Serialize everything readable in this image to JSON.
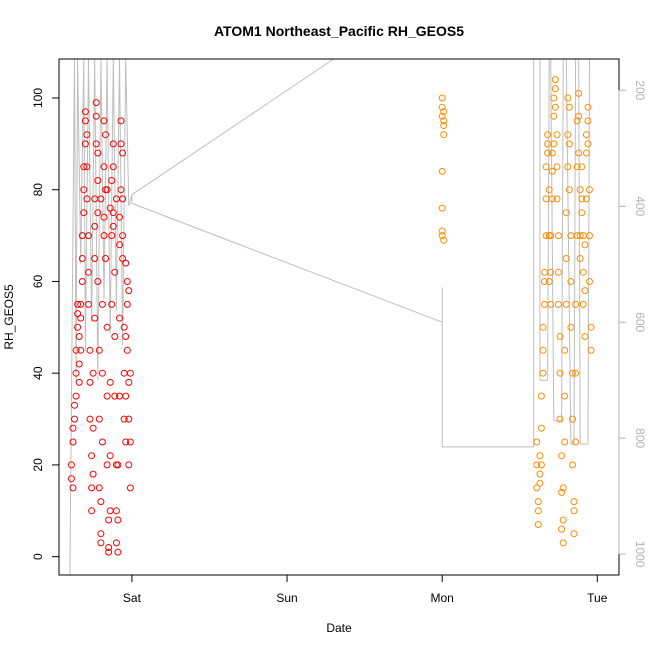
{
  "chart_data": {
    "type": "scatter",
    "title": "ATOM1 Northeast_Pacific RH_GEOS5",
    "xlabel": "Date",
    "ylabel": "RH_GEOS5",
    "xlim": [
      -0.47,
      3.14
    ],
    "ylim": [
      -4,
      108.5
    ],
    "x_ticks": [
      {
        "value": 0,
        "label": "Sat"
      },
      {
        "value": 1,
        "label": "Sun"
      },
      {
        "value": 2,
        "label": "Mon"
      },
      {
        "value": 3,
        "label": "Tue"
      }
    ],
    "y_ticks": [
      0,
      20,
      40,
      60,
      80,
      100
    ],
    "right_axis": {
      "label": "",
      "ticks": [
        200,
        400,
        600,
        800,
        1000
      ],
      "range": [
        1036,
        146
      ],
      "color": "#b3b3b3"
    },
    "series": [
      {
        "color": "#ff0000",
        "points": [
          [
            -0.39,
            17
          ],
          [
            -0.39,
            20
          ],
          [
            -0.38,
            15
          ],
          [
            -0.38,
            25
          ],
          [
            -0.38,
            28
          ],
          [
            -0.37,
            33
          ],
          [
            -0.37,
            30
          ],
          [
            -0.36,
            35
          ],
          [
            -0.36,
            40
          ],
          [
            -0.36,
            45
          ],
          [
            -0.35,
            50
          ],
          [
            -0.35,
            53
          ],
          [
            -0.35,
            55
          ],
          [
            -0.34,
            48
          ],
          [
            -0.34,
            42
          ],
          [
            -0.34,
            38
          ],
          [
            -0.33,
            45
          ],
          [
            -0.33,
            55
          ],
          [
            -0.33,
            52
          ],
          [
            -0.32,
            60
          ],
          [
            -0.32,
            65
          ],
          [
            -0.32,
            70
          ],
          [
            -0.31,
            75
          ],
          [
            -0.31,
            80
          ],
          [
            -0.31,
            85
          ],
          [
            -0.3,
            90
          ],
          [
            -0.3,
            95
          ],
          [
            -0.3,
            97
          ],
          [
            -0.29,
            92
          ],
          [
            -0.29,
            85
          ],
          [
            -0.29,
            78
          ],
          [
            -0.28,
            70
          ],
          [
            -0.28,
            62
          ],
          [
            -0.28,
            55
          ],
          [
            -0.27,
            45
          ],
          [
            -0.27,
            38
          ],
          [
            -0.27,
            30
          ],
          [
            -0.26,
            22
          ],
          [
            -0.26,
            15
          ],
          [
            -0.26,
            10
          ],
          [
            -0.25,
            18
          ],
          [
            -0.25,
            28
          ],
          [
            -0.25,
            40
          ],
          [
            -0.24,
            52
          ],
          [
            -0.24,
            65
          ],
          [
            -0.24,
            78
          ],
          [
            -0.23,
            90
          ],
          [
            -0.23,
            99
          ],
          [
            -0.23,
            96
          ],
          [
            -0.22,
            88
          ],
          [
            -0.22,
            75
          ],
          [
            -0.22,
            60
          ],
          [
            -0.21,
            45
          ],
          [
            -0.21,
            30
          ],
          [
            -0.21,
            15
          ],
          [
            -0.2,
            5
          ],
          [
            -0.2,
            3
          ],
          [
            -0.2,
            12
          ],
          [
            -0.19,
            25
          ],
          [
            -0.19,
            40
          ],
          [
            -0.19,
            55
          ],
          [
            -0.18,
            70
          ],
          [
            -0.18,
            85
          ],
          [
            -0.18,
            95
          ],
          [
            -0.17,
            92
          ],
          [
            -0.17,
            80
          ],
          [
            -0.17,
            65
          ],
          [
            -0.16,
            50
          ],
          [
            -0.16,
            35
          ],
          [
            -0.16,
            20
          ],
          [
            -0.15,
            8
          ],
          [
            -0.15,
            2
          ],
          [
            -0.15,
            1
          ],
          [
            -0.14,
            10
          ],
          [
            -0.14,
            22
          ],
          [
            -0.14,
            38
          ],
          [
            -0.13,
            55
          ],
          [
            -0.13,
            70
          ],
          [
            -0.13,
            82
          ],
          [
            -0.12,
            90
          ],
          [
            -0.12,
            85
          ],
          [
            -0.12,
            75
          ],
          [
            -0.11,
            62
          ],
          [
            -0.11,
            48
          ],
          [
            -0.11,
            35
          ],
          [
            -0.1,
            20
          ],
          [
            -0.1,
            10
          ],
          [
            -0.1,
            3
          ],
          [
            -0.09,
            1
          ],
          [
            -0.09,
            8
          ],
          [
            -0.09,
            20
          ],
          [
            -0.08,
            35
          ],
          [
            -0.08,
            52
          ],
          [
            -0.08,
            68
          ],
          [
            -0.07,
            80
          ],
          [
            -0.07,
            90
          ],
          [
            -0.07,
            95
          ],
          [
            -0.06,
            88
          ],
          [
            -0.06,
            78
          ],
          [
            -0.06,
            65
          ],
          [
            -0.05,
            50
          ],
          [
            -0.05,
            40
          ],
          [
            -0.05,
            30
          ],
          [
            -0.04,
            25
          ],
          [
            -0.04,
            35
          ],
          [
            -0.04,
            48
          ],
          [
            -0.03,
            60
          ],
          [
            -0.03,
            55
          ],
          [
            -0.03,
            45
          ],
          [
            -0.02,
            38
          ],
          [
            -0.02,
            30
          ],
          [
            -0.02,
            20
          ],
          [
            -0.01,
            15
          ],
          [
            -0.01,
            25
          ],
          [
            -0.01,
            40
          ],
          [
            -0.24,
            72
          ],
          [
            -0.22,
            82
          ],
          [
            -0.2,
            78
          ],
          [
            -0.18,
            74
          ],
          [
            -0.16,
            80
          ],
          [
            -0.14,
            76
          ],
          [
            -0.12,
            72
          ],
          [
            -0.1,
            78
          ],
          [
            -0.08,
            74
          ],
          [
            -0.06,
            70
          ],
          [
            -0.04,
            64
          ],
          [
            -0.02,
            58
          ]
        ]
      },
      {
        "color": "#ff8c00",
        "points": [
          [
            2.0,
            100
          ],
          [
            2.0,
            98
          ],
          [
            2.0,
            96
          ],
          [
            2.01,
            94
          ],
          [
            2.01,
            97
          ],
          [
            2.01,
            95
          ],
          [
            2.01,
            92
          ],
          [
            2.0,
            84
          ],
          [
            2.0,
            76
          ],
          [
            2.0,
            71
          ],
          [
            2.0,
            70
          ],
          [
            2.01,
            69
          ],
          [
            2.61,
            25
          ],
          [
            2.61,
            20
          ],
          [
            2.61,
            15
          ],
          [
            2.62,
            10
          ],
          [
            2.62,
            7
          ],
          [
            2.62,
            12
          ],
          [
            2.63,
            18
          ],
          [
            2.63,
            22
          ],
          [
            2.63,
            16
          ],
          [
            2.64,
            20
          ],
          [
            2.64,
            28
          ],
          [
            2.64,
            35
          ],
          [
            2.65,
            40
          ],
          [
            2.65,
            45
          ],
          [
            2.65,
            50
          ],
          [
            2.66,
            55
          ],
          [
            2.66,
            60
          ],
          [
            2.66,
            62
          ],
          [
            2.67,
            70
          ],
          [
            2.67,
            78
          ],
          [
            2.67,
            85
          ],
          [
            2.68,
            90
          ],
          [
            2.68,
            92
          ],
          [
            2.68,
            88
          ],
          [
            2.69,
            80
          ],
          [
            2.69,
            70
          ],
          [
            2.69,
            60
          ],
          [
            2.7,
            55
          ],
          [
            2.7,
            62
          ],
          [
            2.7,
            70
          ],
          [
            2.71,
            78
          ],
          [
            2.71,
            84
          ],
          [
            2.71,
            88
          ],
          [
            2.72,
            90
          ],
          [
            2.72,
            96
          ],
          [
            2.72,
            100
          ],
          [
            2.73,
            104
          ],
          [
            2.73,
            102
          ],
          [
            2.73,
            98
          ],
          [
            2.74,
            92
          ],
          [
            2.74,
            85
          ],
          [
            2.74,
            78
          ],
          [
            2.75,
            70
          ],
          [
            2.75,
            62
          ],
          [
            2.75,
            55
          ],
          [
            2.76,
            48
          ],
          [
            2.76,
            40
          ],
          [
            2.76,
            30
          ],
          [
            2.77,
            22
          ],
          [
            2.77,
            14
          ],
          [
            2.77,
            6
          ],
          [
            2.78,
            3
          ],
          [
            2.78,
            8
          ],
          [
            2.78,
            15
          ],
          [
            2.79,
            25
          ],
          [
            2.79,
            35
          ],
          [
            2.79,
            45
          ],
          [
            2.8,
            55
          ],
          [
            2.8,
            65
          ],
          [
            2.8,
            75
          ],
          [
            2.81,
            85
          ],
          [
            2.81,
            92
          ],
          [
            2.81,
            100
          ],
          [
            2.82,
            98
          ],
          [
            2.82,
            90
          ],
          [
            2.82,
            80
          ],
          [
            2.83,
            70
          ],
          [
            2.83,
            60
          ],
          [
            2.83,
            50
          ],
          [
            2.84,
            40
          ],
          [
            2.84,
            30
          ],
          [
            2.84,
            20
          ],
          [
            2.85,
            10
          ],
          [
            2.85,
            5
          ],
          [
            2.85,
            12
          ],
          [
            2.86,
            25
          ],
          [
            2.86,
            40
          ],
          [
            2.86,
            55
          ],
          [
            2.87,
            70
          ],
          [
            2.87,
            85
          ],
          [
            2.87,
            95
          ],
          [
            2.88,
            101
          ],
          [
            2.88,
            96
          ],
          [
            2.88,
            88
          ],
          [
            2.89,
            80
          ],
          [
            2.89,
            70
          ],
          [
            2.89,
            65
          ],
          [
            2.9,
            75
          ],
          [
            2.9,
            85
          ],
          [
            2.9,
            78
          ],
          [
            2.91,
            70
          ],
          [
            2.91,
            62
          ],
          [
            2.91,
            55
          ],
          [
            2.92,
            48
          ],
          [
            2.92,
            58
          ],
          [
            2.92,
            68
          ],
          [
            2.93,
            78
          ],
          [
            2.93,
            88
          ],
          [
            2.93,
            92
          ],
          [
            2.94,
            95
          ],
          [
            2.94,
            98
          ],
          [
            2.94,
            90
          ],
          [
            2.95,
            80
          ],
          [
            2.95,
            70
          ],
          [
            2.95,
            60
          ],
          [
            2.96,
            50
          ],
          [
            2.96,
            45
          ]
        ]
      }
    ],
    "pressure_line": {
      "color": "#bebebe",
      "points": [
        [
          -0.4,
          1036
        ],
        [
          -0.37,
          146
        ],
        [
          -0.36,
          700
        ],
        [
          -0.35,
          146
        ],
        [
          -0.33,
          500
        ],
        [
          -0.31,
          146
        ],
        [
          -0.3,
          650
        ],
        [
          -0.28,
          146
        ],
        [
          -0.26,
          600
        ],
        [
          -0.24,
          146
        ],
        [
          -0.22,
          700
        ],
        [
          -0.2,
          146
        ],
        [
          -0.18,
          560
        ],
        [
          -0.16,
          146
        ],
        [
          -0.14,
          620
        ],
        [
          -0.12,
          146
        ],
        [
          -0.1,
          580
        ],
        [
          -0.08,
          146
        ],
        [
          -0.06,
          640
        ],
        [
          -0.04,
          146
        ],
        [
          -0.02,
          400
        ],
        [
          -0.01,
          390
        ],
        [
          0.0,
          380
        ],
        [
          0.0,
          395
        ],
        [
          2.0,
          600
        ],
        [
          2.0,
          540
        ],
        [
          2.0,
          815
        ],
        [
          2.59,
          815
        ],
        [
          2.59,
          146
        ],
        [
          2.63,
          146
        ],
        [
          2.63,
          700
        ],
        [
          2.68,
          700
        ],
        [
          2.69,
          146
        ],
        [
          2.7,
          146
        ],
        [
          2.72,
          770
        ],
        [
          2.77,
          770
        ],
        [
          2.78,
          146
        ],
        [
          2.8,
          146
        ],
        [
          2.83,
          810
        ],
        [
          2.85,
          810
        ],
        [
          2.86,
          146
        ],
        [
          2.88,
          146
        ],
        [
          2.89,
          810
        ],
        [
          2.94,
          810
        ],
        [
          2.95,
          146
        ]
      ],
      "connector": [
        [
          0.0,
          380
        ],
        [
          1.3,
          146
        ]
      ]
    }
  }
}
